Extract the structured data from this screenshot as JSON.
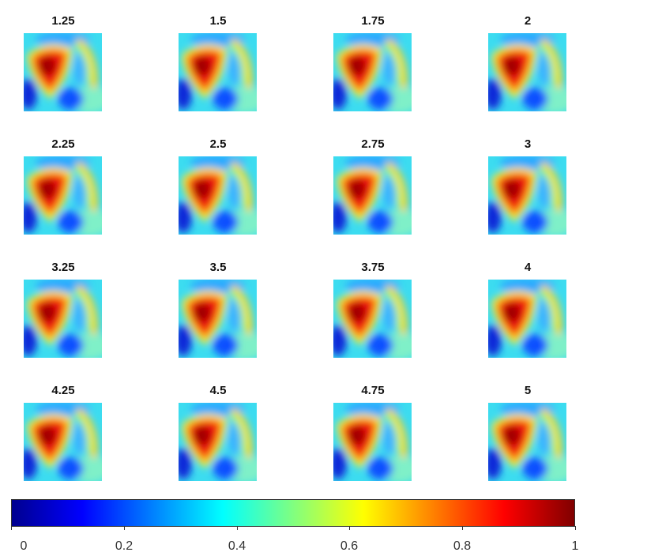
{
  "chart_data": {
    "type": "heatmap",
    "panels": [
      {
        "title": "1.25"
      },
      {
        "title": "1.5"
      },
      {
        "title": "1.75"
      },
      {
        "title": "2"
      },
      {
        "title": "2.25"
      },
      {
        "title": "2.5"
      },
      {
        "title": "2.75"
      },
      {
        "title": "3"
      },
      {
        "title": "3.25"
      },
      {
        "title": "3.5"
      },
      {
        "title": "3.75"
      },
      {
        "title": "4"
      },
      {
        "title": "4.25"
      },
      {
        "title": "4.5"
      },
      {
        "title": "4.75"
      },
      {
        "title": "5"
      }
    ],
    "grid_rows": 4,
    "grid_cols": 4,
    "colormap": "jet",
    "colorbar": {
      "orientation": "horizontal",
      "range": [
        0,
        1
      ],
      "ticks": [
        "0",
        "0.2",
        "0.4",
        "0.6",
        "0.8",
        "1"
      ]
    },
    "axes_visible": false
  }
}
